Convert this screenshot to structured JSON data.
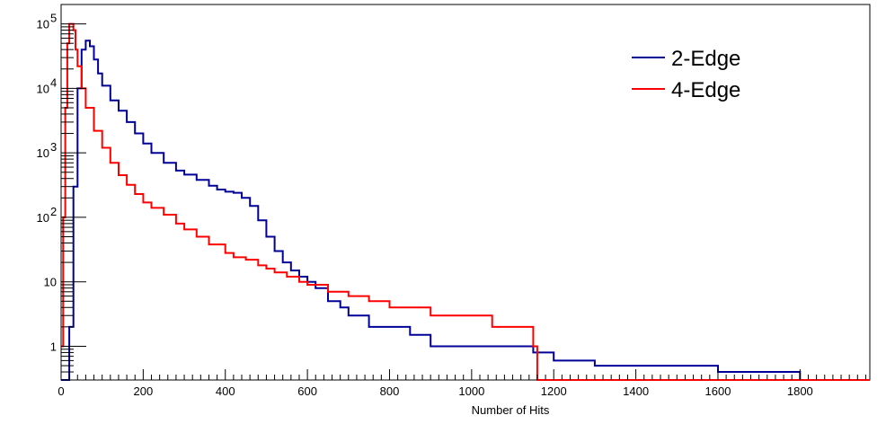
{
  "chart_data": {
    "type": "line",
    "title": "",
    "xlabel": "Number of Hits",
    "ylabel": "",
    "xlim": [
      0,
      1970
    ],
    "ylim": [
      0.3,
      200000
    ],
    "yscale": "log",
    "grid": false,
    "legend_position": "top-right",
    "x_ticks": [
      0,
      200,
      400,
      600,
      800,
      1000,
      1200,
      1400,
      1600,
      1800
    ],
    "x_tick_labels": [
      "0",
      "200",
      "400",
      "600",
      "800",
      "1000",
      "1200",
      "1400",
      "1600",
      "1800"
    ],
    "y_ticks": [
      {
        "value": 1,
        "base": "1",
        "exp": ""
      },
      {
        "value": 10,
        "base": "10",
        "exp": ""
      },
      {
        "value": 100,
        "base": "10",
        "exp": "2"
      },
      {
        "value": 1000,
        "base": "10",
        "exp": "3"
      },
      {
        "value": 10000,
        "base": "10",
        "exp": "4"
      },
      {
        "value": 100000,
        "base": "10",
        "exp": "5"
      }
    ],
    "series": [
      {
        "name": "2-Edge",
        "color": "#000099",
        "x": [
          0,
          10,
          20,
          30,
          40,
          50,
          60,
          65,
          70,
          80,
          90,
          100,
          120,
          140,
          160,
          180,
          200,
          220,
          250,
          280,
          300,
          330,
          360,
          380,
          400,
          420,
          440,
          460,
          480,
          500,
          520,
          540,
          560,
          580,
          600,
          620,
          650,
          680,
          700,
          720,
          750,
          780,
          800,
          850,
          900,
          950,
          1000,
          1050,
          1100,
          1150,
          1200,
          1300,
          1400,
          1500,
          1600,
          1700,
          1800,
          1900,
          1960
        ],
        "y": [
          0.3,
          0.3,
          2,
          300,
          10000,
          40000,
          55000,
          55000,
          45000,
          28000,
          17000,
          11000,
          6500,
          4500,
          3000,
          2000,
          1400,
          1000,
          700,
          530,
          460,
          380,
          310,
          270,
          250,
          240,
          200,
          150,
          90,
          50,
          30,
          20,
          15,
          12,
          10,
          8,
          5,
          4,
          3,
          3,
          2,
          2,
          2,
          1.5,
          1,
          1,
          1,
          1,
          1,
          0.8,
          0.6,
          0.5,
          0.5,
          0.5,
          0.4,
          0.4,
          0.3,
          0.3,
          0.3
        ]
      },
      {
        "name": "4-Edge",
        "color": "#ff0000",
        "x": [
          0,
          5,
          10,
          15,
          20,
          25,
          30,
          35,
          40,
          50,
          60,
          80,
          100,
          120,
          140,
          160,
          180,
          200,
          220,
          250,
          280,
          300,
          330,
          360,
          400,
          420,
          450,
          480,
          500,
          520,
          550,
          580,
          600,
          650,
          700,
          750,
          800,
          850,
          900,
          950,
          1000,
          1050,
          1100,
          1150,
          1160,
          1200,
          1300,
          1400,
          1500,
          1600,
          1700,
          1800,
          1900,
          1970
        ],
        "y": [
          1,
          100,
          5000,
          50000,
          100000,
          100000,
          80000,
          40000,
          22000,
          10000,
          5000,
          2200,
          1200,
          700,
          450,
          320,
          230,
          170,
          140,
          110,
          80,
          65,
          50,
          38,
          28,
          24,
          22,
          18,
          16,
          14,
          12,
          10,
          9,
          7,
          6,
          5,
          4,
          4,
          3,
          3,
          3,
          2,
          2,
          1,
          0.3,
          0.3,
          0.3,
          0.3,
          0.3,
          0.3,
          0.3,
          0.3,
          0.3,
          0.3
        ]
      }
    ]
  }
}
